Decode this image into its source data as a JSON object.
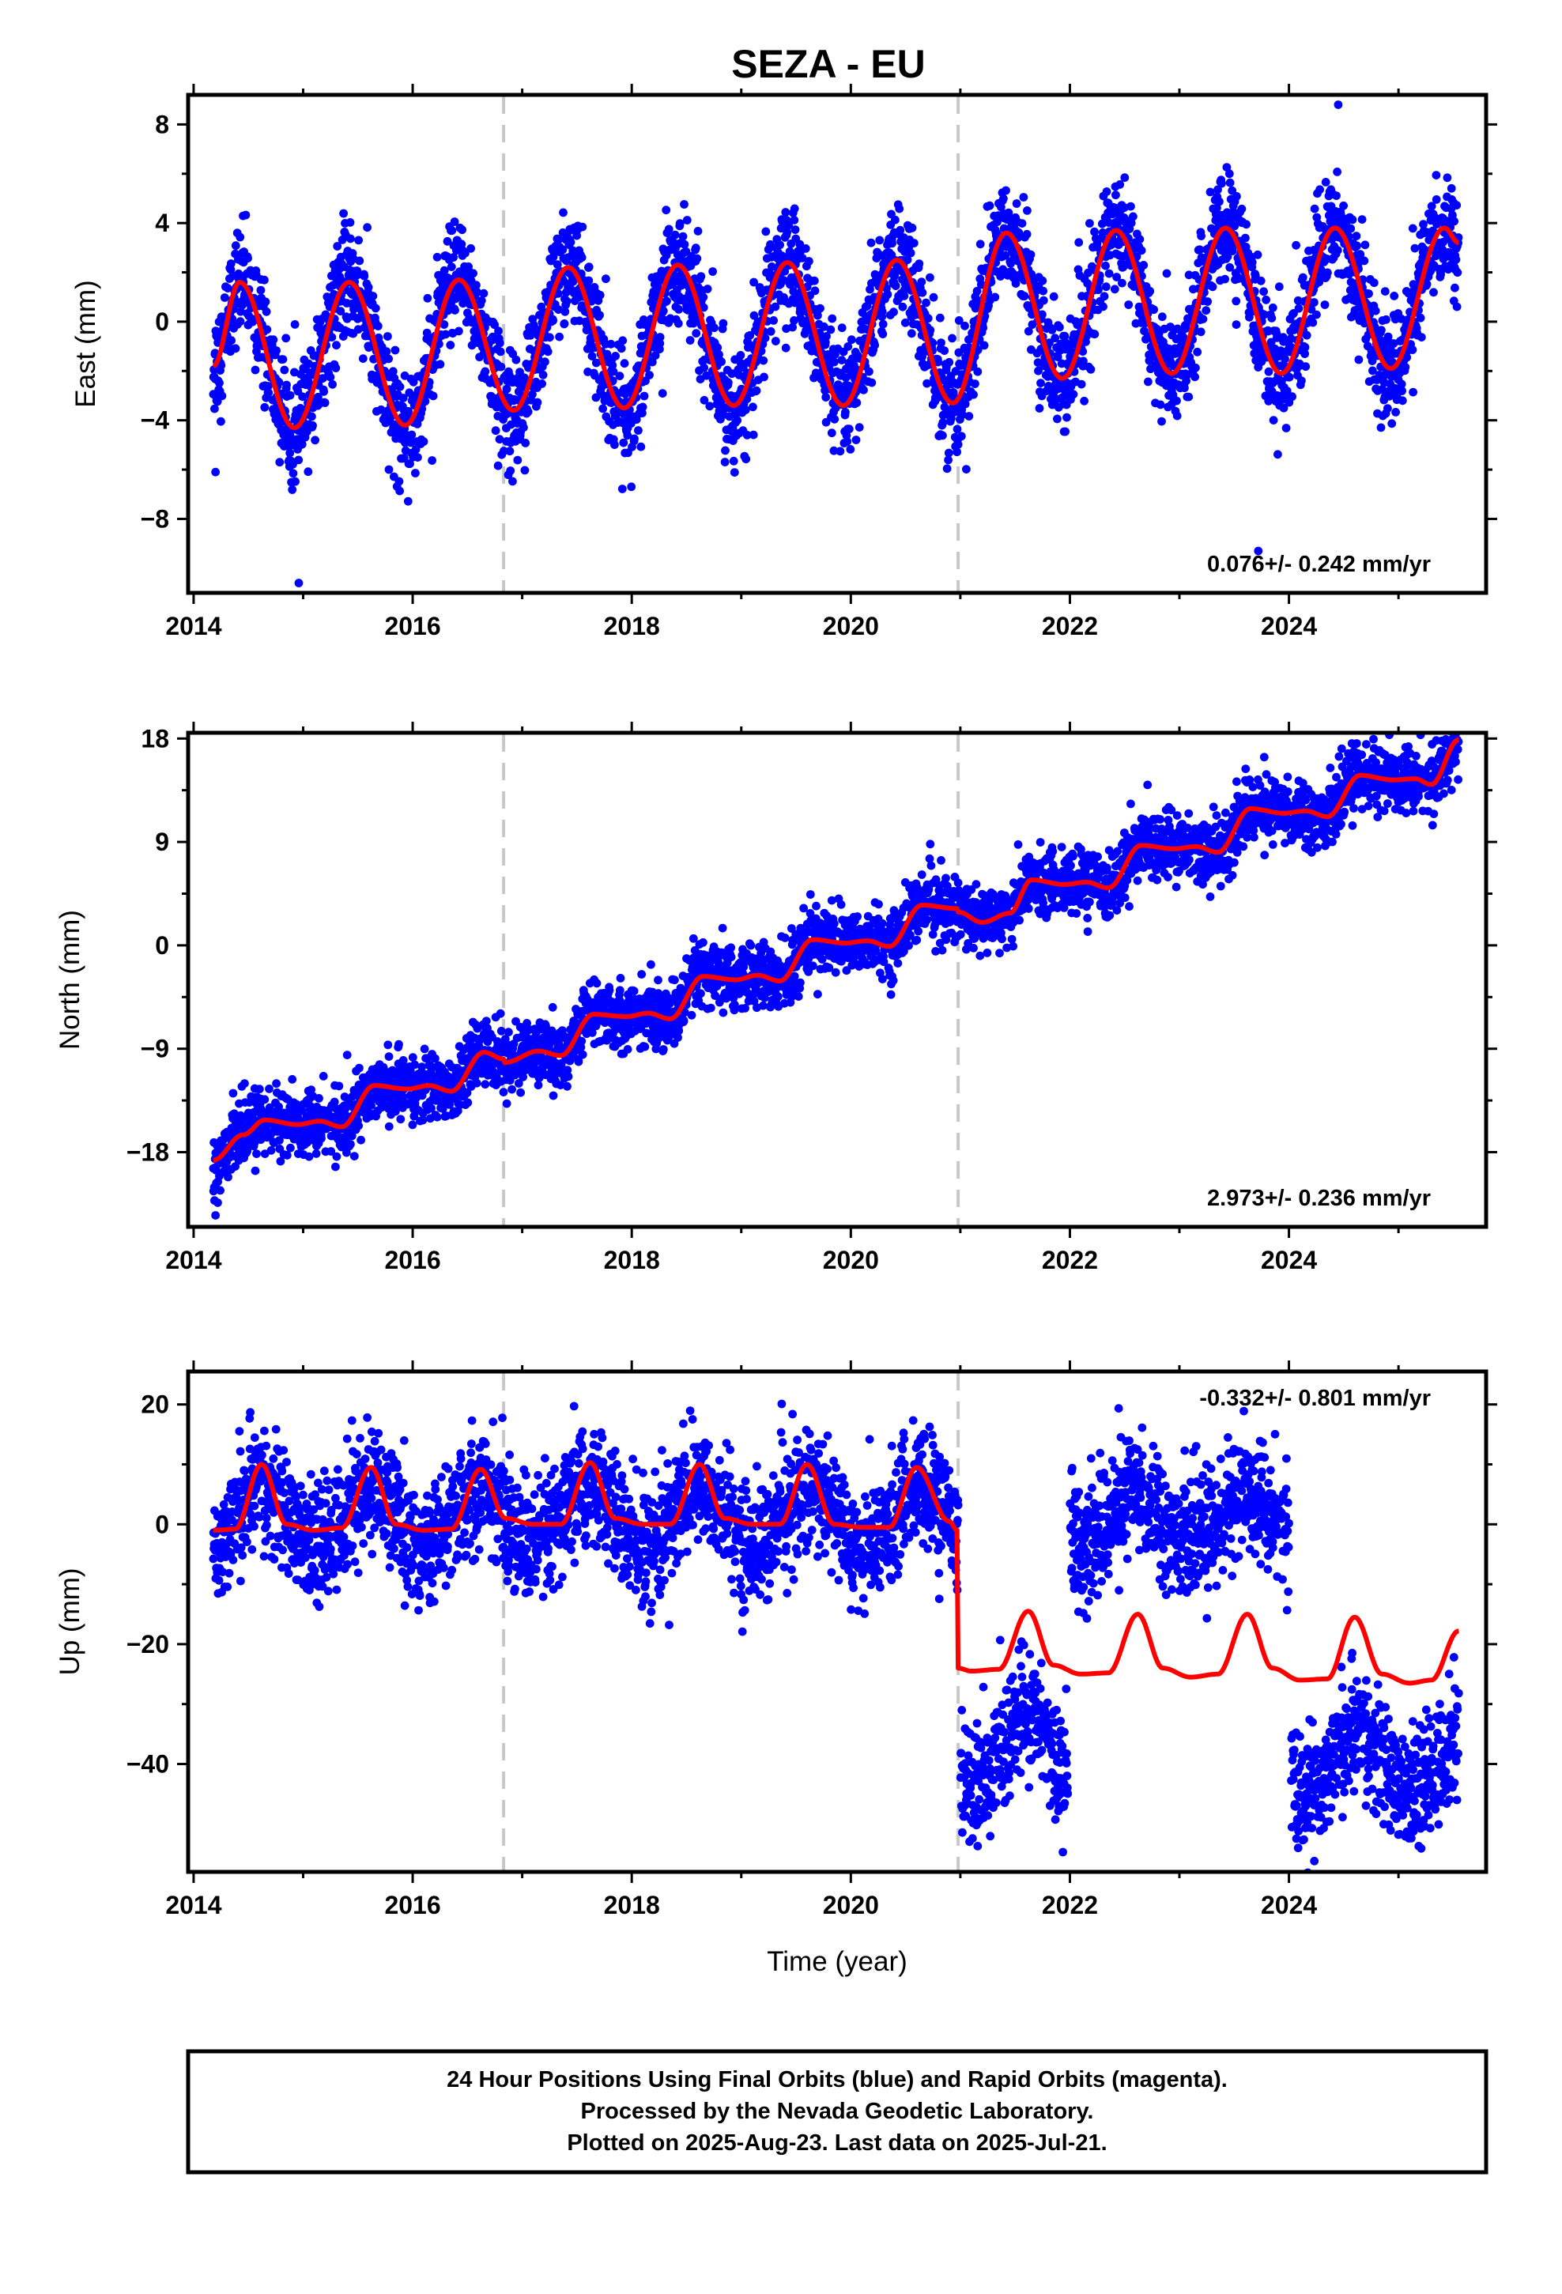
{
  "title": "SEZA - EU",
  "colors": {
    "points": "#0000ff",
    "model": "#ff0000",
    "breaks": "#c8c8c8",
    "frame": "#000000"
  },
  "xticks": [
    "2014",
    "2016",
    "2018",
    "2020",
    "2022",
    "2024"
  ],
  "footer": {
    "line1": "24 Hour Positions Using Final Orbits (blue) and Rapid Orbits (magenta).",
    "line2": "Processed by the Nevada Geodetic Laboratory.",
    "line3": "Plotted on 2025-Aug-23. Last data on 2025-Jul-21."
  },
  "chart_data": [
    {
      "type": "scatter",
      "panel": "east",
      "ylabel": "East (mm)",
      "xlabel": "",
      "xlim": [
        2013.95,
        2025.8
      ],
      "ylim": [
        -11.0,
        9.2
      ],
      "yticks": [
        "8",
        "4",
        "0",
        "−4",
        "−8"
      ],
      "ytick_values": [
        8,
        4,
        0,
        -4,
        -8
      ],
      "xticks": [
        2014,
        2016,
        2018,
        2020,
        2022,
        2024
      ],
      "grid": false,
      "rate_label": "0.076+/- 0.242 mm/yr",
      "rate_position": "bottom-right",
      "data_span": [
        2014.18,
        2025.55
      ],
      "break_epochs": [
        2016.83,
        2020.98
      ],
      "series": [
        {
          "name": "",
          "role": "daily positions",
          "marker": "dot",
          "model": {
            "segments": [
              {
                "start": 2014.18,
                "end": 2020.98,
                "offset": -1.2,
                "rate": 0.076,
                "ref": 2014.18
              },
              {
                "start": 2020.98,
                "end": 2025.55,
                "offset": 0.85,
                "rate": 0.076,
                "ref": 2020.98
              }
            ],
            "annual_amplitude": 2.9,
            "annual_peak": 0.42,
            "semiannual_amplitude": 0.4,
            "semiannual_peak": 0.45
          },
          "scatter": 1.1,
          "outliers": [
            [
              2014.96,
              -10.6
            ],
            [
              2024.45,
              8.8
            ],
            [
              2023.72,
              -9.3
            ],
            [
              2014.2,
              -6.1
            ]
          ]
        },
        {
          "name": "",
          "role": "model fit",
          "line": true,
          "anchors": [
            [
              2014.18,
              -1.8
            ],
            [
              2014.42,
              1.6
            ],
            [
              2014.92,
              -4.3
            ],
            [
              2015.42,
              1.6
            ],
            [
              2015.93,
              -4.2
            ],
            [
              2016.42,
              1.7
            ],
            [
              2016.92,
              -3.6
            ],
            [
              2017.42,
              2.2
            ],
            [
              2017.93,
              -3.5
            ],
            [
              2018.42,
              2.3
            ],
            [
              2018.93,
              -3.4
            ],
            [
              2019.42,
              2.4
            ],
            [
              2019.93,
              -3.4
            ],
            [
              2020.42,
              2.5
            ],
            [
              2020.93,
              -3.3
            ],
            [
              2021.42,
              3.6
            ],
            [
              2021.93,
              -2.3
            ],
            [
              2022.42,
              3.7
            ],
            [
              2022.93,
              -2.1
            ],
            [
              2023.42,
              3.8
            ],
            [
              2023.93,
              -2.1
            ],
            [
              2024.42,
              3.8
            ],
            [
              2024.93,
              -1.9
            ],
            [
              2025.42,
              3.8
            ],
            [
              2025.55,
              3.2
            ]
          ]
        }
      ]
    },
    {
      "type": "scatter",
      "panel": "north",
      "ylabel": "North (mm)",
      "xlabel": "",
      "xlim": [
        2013.95,
        2025.8
      ],
      "ylim": [
        -24.5,
        18.5
      ],
      "yticks": [
        "18",
        "9",
        "0",
        "−9",
        "−18"
      ],
      "ytick_values": [
        18,
        9,
        0,
        -9,
        -18
      ],
      "xticks": [
        2014,
        2016,
        2018,
        2020,
        2022,
        2024
      ],
      "grid": false,
      "rate_label": "2.973+/- 0.236 mm/yr",
      "rate_position": "bottom-right",
      "data_span": [
        2014.18,
        2025.55
      ],
      "break_epochs": [
        2016.83,
        2020.98
      ],
      "series": [
        {
          "name": "",
          "role": "daily positions",
          "marker": "dot",
          "scatter": 1.4,
          "outliers": [
            [
              2014.2,
              -23.5
            ],
            [
              2014.22,
              -22.4
            ]
          ]
        },
        {
          "name": "",
          "role": "model fit",
          "line": true,
          "anchors": [
            [
              2014.18,
              -18.7
            ],
            [
              2014.45,
              -16.5
            ],
            [
              2014.65,
              -15.2
            ],
            [
              2014.95,
              -15.6
            ],
            [
              2015.15,
              -15.3
            ],
            [
              2015.35,
              -15.8
            ],
            [
              2015.65,
              -12.2
            ],
            [
              2015.95,
              -12.5
            ],
            [
              2016.15,
              -12.2
            ],
            [
              2016.35,
              -12.7
            ],
            [
              2016.65,
              -9.3
            ],
            [
              2016.83,
              -9.9
            ],
            [
              2016.84,
              -10.2
            ],
            [
              2017.15,
              -9.2
            ],
            [
              2017.35,
              -9.6
            ],
            [
              2017.65,
              -6.0
            ],
            [
              2017.95,
              -6.2
            ],
            [
              2018.15,
              -5.9
            ],
            [
              2018.35,
              -6.4
            ],
            [
              2018.65,
              -2.7
            ],
            [
              2018.95,
              -3.0
            ],
            [
              2019.15,
              -2.6
            ],
            [
              2019.35,
              -3.1
            ],
            [
              2019.65,
              0.5
            ],
            [
              2019.95,
              0.2
            ],
            [
              2020.15,
              0.4
            ],
            [
              2020.35,
              -0.1
            ],
            [
              2020.65,
              3.5
            ],
            [
              2020.97,
              3.2
            ],
            [
              2020.98,
              2.9
            ],
            [
              2021.2,
              2.0
            ],
            [
              2021.45,
              2.8
            ],
            [
              2021.65,
              5.7
            ],
            [
              2021.95,
              5.3
            ],
            [
              2022.15,
              5.5
            ],
            [
              2022.35,
              5.0
            ],
            [
              2022.65,
              8.7
            ],
            [
              2022.95,
              8.4
            ],
            [
              2023.15,
              8.6
            ],
            [
              2023.35,
              8.1
            ],
            [
              2023.65,
              11.9
            ],
            [
              2023.95,
              11.5
            ],
            [
              2024.15,
              11.7
            ],
            [
              2024.35,
              11.2
            ],
            [
              2024.65,
              14.8
            ],
            [
              2024.95,
              14.4
            ],
            [
              2025.15,
              14.5
            ],
            [
              2025.3,
              14.0
            ],
            [
              2025.55,
              17.9
            ]
          ]
        }
      ]
    },
    {
      "type": "scatter",
      "panel": "up",
      "ylabel": "Up (mm)",
      "xlabel": "Time (year)",
      "xlim": [
        2013.95,
        2025.8
      ],
      "ylim": [
        -58.0,
        25.5
      ],
      "yticks": [
        "20",
        "0",
        "−20",
        "−40"
      ],
      "ytick_values": [
        20,
        0,
        -20,
        -40
      ],
      "xticks": [
        2014,
        2016,
        2018,
        2020,
        2022,
        2024
      ],
      "grid": false,
      "rate_label": "-0.332+/- 0.801 mm/yr",
      "rate_position": "top-right",
      "data_span": [
        2014.18,
        2025.55
      ],
      "break_epochs": [
        2016.83,
        2020.98
      ],
      "series": [
        {
          "name": "",
          "role": "daily positions",
          "marker": "dot",
          "clusters": [
            {
              "start": 2014.18,
              "end": 2020.98,
              "base": 1.0,
              "amplitude": 5.0,
              "scatter": 5.0
            },
            {
              "start": 2021.0,
              "end": 2021.98,
              "base": -38.0,
              "amplitude": 6.0,
              "scatter": 5.0
            },
            {
              "start": 2022.0,
              "end": 2024.0,
              "base": 1.0,
              "amplitude": 4.0,
              "scatter": 5.0
            },
            {
              "start": 2024.02,
              "end": 2025.55,
              "base": -40.0,
              "amplitude": 5.0,
              "scatter": 5.0
            }
          ]
        },
        {
          "name": "",
          "role": "model fit",
          "line": true,
          "anchors": [
            [
              2014.18,
              -1.0
            ],
            [
              2014.38,
              -0.8
            ],
            [
              2014.62,
              10.0
            ],
            [
              2014.85,
              0.0
            ],
            [
              2015.1,
              -1.0
            ],
            [
              2015.35,
              -0.6
            ],
            [
              2015.62,
              9.5
            ],
            [
              2015.85,
              0.0
            ],
            [
              2016.1,
              -1.0
            ],
            [
              2016.35,
              -0.8
            ],
            [
              2016.62,
              9.2
            ],
            [
              2016.85,
              1.0
            ],
            [
              2017.1,
              0.0
            ],
            [
              2017.35,
              0.0
            ],
            [
              2017.62,
              10.3
            ],
            [
              2017.85,
              1.0
            ],
            [
              2018.1,
              0.0
            ],
            [
              2018.35,
              0.0
            ],
            [
              2018.62,
              10.0
            ],
            [
              2018.85,
              1.0
            ],
            [
              2019.1,
              0.0
            ],
            [
              2019.35,
              0.0
            ],
            [
              2019.6,
              10.0
            ],
            [
              2019.85,
              0.0
            ],
            [
              2020.1,
              -0.5
            ],
            [
              2020.35,
              -0.5
            ],
            [
              2020.6,
              9.5
            ],
            [
              2020.9,
              0.5
            ],
            [
              2020.97,
              -1.0
            ],
            [
              2020.98,
              -24.0
            ],
            [
              2021.1,
              -24.5
            ],
            [
              2021.35,
              -24.2
            ],
            [
              2021.62,
              -14.5
            ],
            [
              2021.85,
              -23.5
            ],
            [
              2022.1,
              -25.0
            ],
            [
              2022.35,
              -24.8
            ],
            [
              2022.62,
              -15.0
            ],
            [
              2022.85,
              -24.0
            ],
            [
              2023.1,
              -25.5
            ],
            [
              2023.35,
              -25.0
            ],
            [
              2023.62,
              -15.0
            ],
            [
              2023.85,
              -24.0
            ],
            [
              2024.1,
              -26.0
            ],
            [
              2024.35,
              -25.8
            ],
            [
              2024.6,
              -15.5
            ],
            [
              2024.85,
              -25.0
            ],
            [
              2025.1,
              -26.5
            ],
            [
              2025.3,
              -26.0
            ],
            [
              2025.55,
              -17.8
            ]
          ]
        }
      ]
    }
  ]
}
